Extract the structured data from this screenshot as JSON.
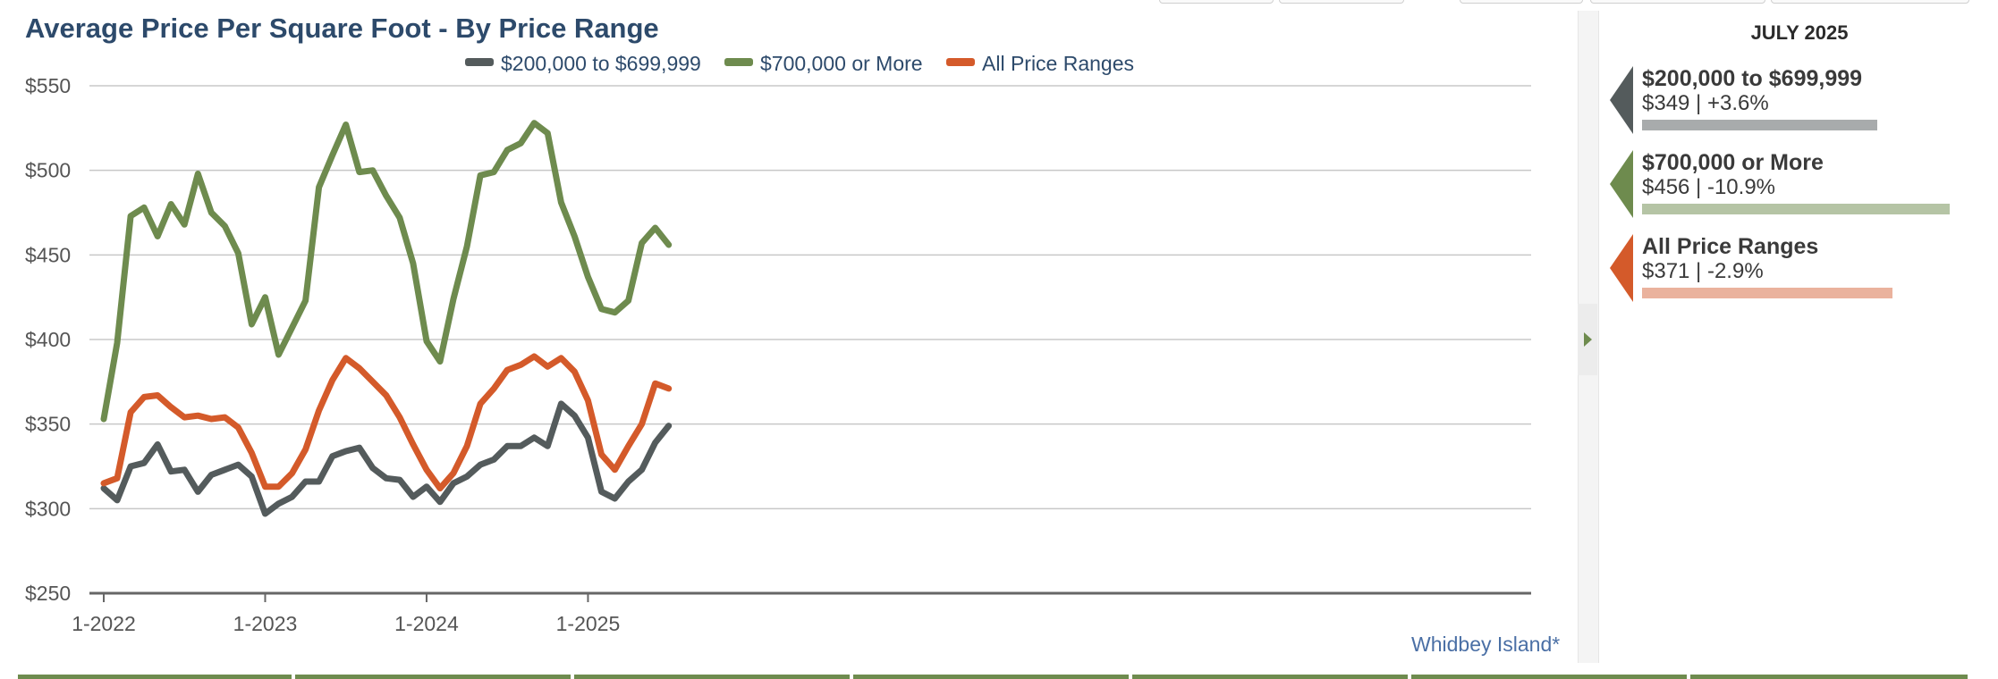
{
  "chart_data": {
    "type": "line",
    "title": "Average Price Per Square Foot - By Price Range",
    "xlabel": "",
    "ylabel": "",
    "ylim": [
      250,
      550
    ],
    "y_ticks": [
      250,
      300,
      350,
      400,
      450,
      500,
      550
    ],
    "y_tick_labels": [
      "$250",
      "$300",
      "$350",
      "$400",
      "$450",
      "$500",
      "$550"
    ],
    "x_ticks": [
      0,
      12,
      24,
      36
    ],
    "x_tick_labels": [
      "1-2022",
      "1-2023",
      "1-2024",
      "1-2025"
    ],
    "grid": true,
    "legend_position": "top",
    "series": [
      {
        "name": "$200,000 to $699,999",
        "color": "#545b5c",
        "values": [
          312,
          305,
          325,
          327,
          338,
          322,
          323,
          310,
          320,
          323,
          326,
          319,
          297,
          303,
          307,
          316,
          316,
          331,
          334,
          336,
          324,
          318,
          317,
          307,
          313,
          304,
          315,
          319,
          326,
          329,
          337,
          337,
          342,
          337,
          362,
          355,
          342,
          310,
          306,
          316,
          323,
          339,
          349
        ]
      },
      {
        "name": "$700,000 or More",
        "color": "#6e8b4e",
        "values": [
          353,
          398,
          473,
          478,
          461,
          480,
          468,
          498,
          475,
          467,
          451,
          409,
          425,
          391,
          407,
          423,
          490,
          509,
          527,
          499,
          500,
          485,
          472,
          445,
          399,
          387,
          424,
          455,
          497,
          499,
          512,
          516,
          528,
          522,
          481,
          461,
          437,
          418,
          416,
          423,
          457,
          466,
          456
        ]
      },
      {
        "name": "All Price Ranges",
        "color": "#d45a2a",
        "values": [
          315,
          318,
          357,
          366,
          367,
          360,
          354,
          355,
          353,
          354,
          348,
          333,
          313,
          313,
          321,
          335,
          358,
          376,
          389,
          383,
          375,
          367,
          354,
          338,
          323,
          312,
          321,
          337,
          362,
          371,
          382,
          385,
          390,
          384,
          389,
          381,
          364,
          332,
          323,
          337,
          350,
          374,
          371
        ]
      }
    ]
  },
  "region_link": "Whidbey Island*",
  "summary_panel": {
    "header": "JULY 2025",
    "items": [
      {
        "title": "$200,000 to $699,999",
        "value_text": "$349 | +3.6%",
        "marker_color": "#545b5c",
        "bar_color": "#a8abac",
        "bar_fraction": 0.349
      },
      {
        "title": "$700,000 or More",
        "value_text": "$456 | -10.9%",
        "marker_color": "#6e8b4e",
        "bar_color": "#b5c4a5",
        "bar_fraction": 0.456
      },
      {
        "title": "All Price Ranges",
        "value_text": "$371 | -2.9%",
        "marker_color": "#d45a2a",
        "bar_color": "#eab29d",
        "bar_fraction": 0.371
      }
    ]
  }
}
